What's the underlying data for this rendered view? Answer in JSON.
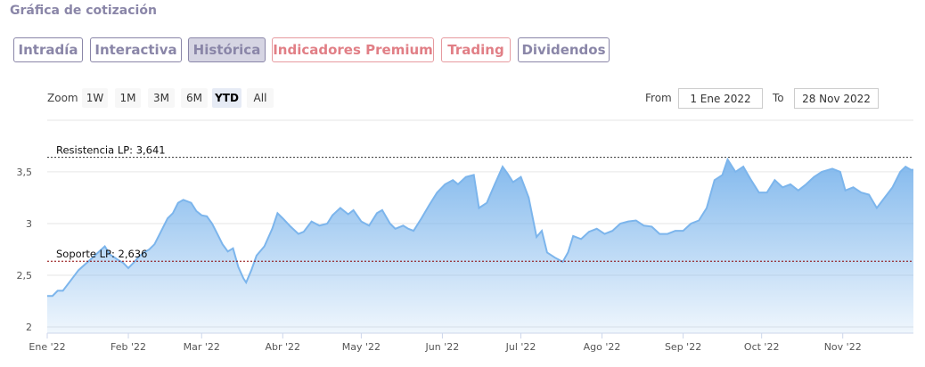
{
  "header": {
    "title": "Gráfica de cotización"
  },
  "tabs": [
    {
      "label": "Intradía",
      "kind": "normal",
      "active": false
    },
    {
      "label": "Interactiva",
      "kind": "normal",
      "active": false
    },
    {
      "label": "Histórica",
      "kind": "normal",
      "active": true
    },
    {
      "label": "Indicadores Premium",
      "kind": "premium",
      "active": false
    },
    {
      "label": "Trading",
      "kind": "premium",
      "active": false
    },
    {
      "label": "Dividendos",
      "kind": "normal",
      "active": false
    }
  ],
  "zoom": {
    "label": "Zoom",
    "buttons": [
      "1W",
      "1M",
      "3M",
      "6M",
      "YTD",
      "All"
    ],
    "selected": "YTD"
  },
  "range": {
    "from_label": "From",
    "from_value": "1 Ene 2022",
    "to_label": "To",
    "to_value": "28 Nov 2022"
  },
  "colors": {
    "accent": "#8a86a8",
    "premium": "#e17f86",
    "series": "#7cb5ec",
    "resistance": "#333333",
    "support": "#8b0000"
  },
  "chart_data": {
    "type": "area",
    "x_start": "2022-01-01",
    "x_end": "2022-11-28",
    "ylim": [
      2,
      3.62
    ],
    "yticks": [
      {
        "value": 2,
        "label": "2"
      },
      {
        "value": 2.5,
        "label": "2,5"
      },
      {
        "value": 3,
        "label": "3"
      },
      {
        "value": 3.5,
        "label": "3,5"
      }
    ],
    "xticks": [
      {
        "date": "2022-01-01",
        "label": "Ene '22"
      },
      {
        "date": "2022-02-01",
        "label": "Feb '22"
      },
      {
        "date": "2022-03-01",
        "label": "Mar '22"
      },
      {
        "date": "2022-04-01",
        "label": "Abr '22"
      },
      {
        "date": "2022-05-01",
        "label": "May '22"
      },
      {
        "date": "2022-06-01",
        "label": "Jun '22"
      },
      {
        "date": "2022-07-01",
        "label": "Jul '22"
      },
      {
        "date": "2022-08-01",
        "label": "Ago '22"
      },
      {
        "date": "2022-09-01",
        "label": "Sep '22"
      },
      {
        "date": "2022-10-01",
        "label": "Oct '22"
      },
      {
        "date": "2022-11-01",
        "label": "Nov '22"
      }
    ],
    "plotlines": [
      {
        "value": 3.641,
        "label": "Resistencia LP: 3,641",
        "style": "resistance"
      },
      {
        "value": 2.636,
        "label": "Soporte LP: 2,636",
        "style": "support"
      }
    ],
    "series": [
      {
        "points": [
          [
            "2022-01-01",
            2.3
          ],
          [
            "2022-01-03",
            2.3
          ],
          [
            "2022-01-05",
            2.35
          ],
          [
            "2022-01-07",
            2.35
          ],
          [
            "2022-01-10",
            2.45
          ],
          [
            "2022-01-13",
            2.55
          ],
          [
            "2022-01-17",
            2.64
          ],
          [
            "2022-01-20",
            2.71
          ],
          [
            "2022-01-23",
            2.78
          ],
          [
            "2022-01-25",
            2.7
          ],
          [
            "2022-01-28",
            2.65
          ],
          [
            "2022-01-30",
            2.62
          ],
          [
            "2022-02-01",
            2.57
          ],
          [
            "2022-02-03",
            2.62
          ],
          [
            "2022-02-05",
            2.68
          ],
          [
            "2022-02-07",
            2.72
          ],
          [
            "2022-02-09",
            2.75
          ],
          [
            "2022-02-11",
            2.8
          ],
          [
            "2022-02-14",
            2.95
          ],
          [
            "2022-02-16",
            3.05
          ],
          [
            "2022-02-18",
            3.1
          ],
          [
            "2022-02-20",
            3.2
          ],
          [
            "2022-02-22",
            3.23
          ],
          [
            "2022-02-25",
            3.2
          ],
          [
            "2022-02-27",
            3.12
          ],
          [
            "2022-03-01",
            3.08
          ],
          [
            "2022-03-03",
            3.07
          ],
          [
            "2022-03-05",
            3.0
          ],
          [
            "2022-03-07",
            2.9
          ],
          [
            "2022-03-09",
            2.8
          ],
          [
            "2022-03-11",
            2.73
          ],
          [
            "2022-03-13",
            2.76
          ],
          [
            "2022-03-15",
            2.58
          ],
          [
            "2022-03-17",
            2.47
          ],
          [
            "2022-03-18",
            2.43
          ],
          [
            "2022-03-20",
            2.55
          ],
          [
            "2022-03-22",
            2.69
          ],
          [
            "2022-03-25",
            2.78
          ],
          [
            "2022-03-28",
            2.95
          ],
          [
            "2022-03-30",
            3.1
          ],
          [
            "2022-04-01",
            3.05
          ],
          [
            "2022-04-04",
            2.97
          ],
          [
            "2022-04-07",
            2.9
          ],
          [
            "2022-04-09",
            2.92
          ],
          [
            "2022-04-12",
            3.02
          ],
          [
            "2022-04-15",
            2.98
          ],
          [
            "2022-04-18",
            3.0
          ],
          [
            "2022-04-20",
            3.08
          ],
          [
            "2022-04-23",
            3.15
          ],
          [
            "2022-04-26",
            3.09
          ],
          [
            "2022-04-28",
            3.13
          ],
          [
            "2022-05-01",
            3.02
          ],
          [
            "2022-05-04",
            2.98
          ],
          [
            "2022-05-07",
            3.1
          ],
          [
            "2022-05-09",
            3.13
          ],
          [
            "2022-05-12",
            3.0
          ],
          [
            "2022-05-14",
            2.95
          ],
          [
            "2022-05-17",
            2.98
          ],
          [
            "2022-05-19",
            2.95
          ],
          [
            "2022-05-21",
            2.93
          ],
          [
            "2022-05-24",
            3.05
          ],
          [
            "2022-05-27",
            3.18
          ],
          [
            "2022-05-30",
            3.3
          ],
          [
            "2022-06-02",
            3.38
          ],
          [
            "2022-06-05",
            3.42
          ],
          [
            "2022-06-07",
            3.38
          ],
          [
            "2022-06-10",
            3.45
          ],
          [
            "2022-06-13",
            3.47
          ],
          [
            "2022-06-15",
            3.15
          ],
          [
            "2022-06-18",
            3.2
          ],
          [
            "2022-06-21",
            3.38
          ],
          [
            "2022-06-24",
            3.55
          ],
          [
            "2022-06-26",
            3.48
          ],
          [
            "2022-06-28",
            3.4
          ],
          [
            "2022-07-01",
            3.45
          ],
          [
            "2022-07-04",
            3.25
          ],
          [
            "2022-07-07",
            2.87
          ],
          [
            "2022-07-09",
            2.93
          ],
          [
            "2022-07-11",
            2.72
          ],
          [
            "2022-07-14",
            2.67
          ],
          [
            "2022-07-17",
            2.63
          ],
          [
            "2022-07-19",
            2.72
          ],
          [
            "2022-07-21",
            2.88
          ],
          [
            "2022-07-24",
            2.85
          ],
          [
            "2022-07-27",
            2.92
          ],
          [
            "2022-07-30",
            2.95
          ],
          [
            "2022-08-02",
            2.9
          ],
          [
            "2022-08-05",
            2.93
          ],
          [
            "2022-08-08",
            3.0
          ],
          [
            "2022-08-11",
            3.02
          ],
          [
            "2022-08-14",
            3.03
          ],
          [
            "2022-08-17",
            2.98
          ],
          [
            "2022-08-20",
            2.97
          ],
          [
            "2022-08-23",
            2.9
          ],
          [
            "2022-08-26",
            2.9
          ],
          [
            "2022-08-29",
            2.93
          ],
          [
            "2022-09-01",
            2.93
          ],
          [
            "2022-09-04",
            3.0
          ],
          [
            "2022-09-07",
            3.03
          ],
          [
            "2022-09-10",
            3.15
          ],
          [
            "2022-09-13",
            3.42
          ],
          [
            "2022-09-16",
            3.47
          ],
          [
            "2022-09-18",
            3.62
          ],
          [
            "2022-09-21",
            3.5
          ],
          [
            "2022-09-24",
            3.55
          ],
          [
            "2022-09-27",
            3.42
          ],
          [
            "2022-09-30",
            3.3
          ],
          [
            "2022-10-03",
            3.3
          ],
          [
            "2022-10-06",
            3.42
          ],
          [
            "2022-10-09",
            3.35
          ],
          [
            "2022-10-12",
            3.38
          ],
          [
            "2022-10-15",
            3.32
          ],
          [
            "2022-10-18",
            3.38
          ],
          [
            "2022-10-21",
            3.45
          ],
          [
            "2022-10-24",
            3.5
          ],
          [
            "2022-10-28",
            3.53
          ],
          [
            "2022-10-31",
            3.5
          ],
          [
            "2022-11-02",
            3.32
          ],
          [
            "2022-11-05",
            3.35
          ],
          [
            "2022-11-08",
            3.3
          ],
          [
            "2022-11-11",
            3.28
          ],
          [
            "2022-11-14",
            3.15
          ],
          [
            "2022-11-17",
            3.25
          ],
          [
            "2022-11-20",
            3.35
          ],
          [
            "2022-11-23",
            3.5
          ],
          [
            "2022-11-25",
            3.55
          ],
          [
            "2022-11-27",
            3.52
          ],
          [
            "2022-11-28",
            3.52
          ]
        ]
      }
    ]
  }
}
